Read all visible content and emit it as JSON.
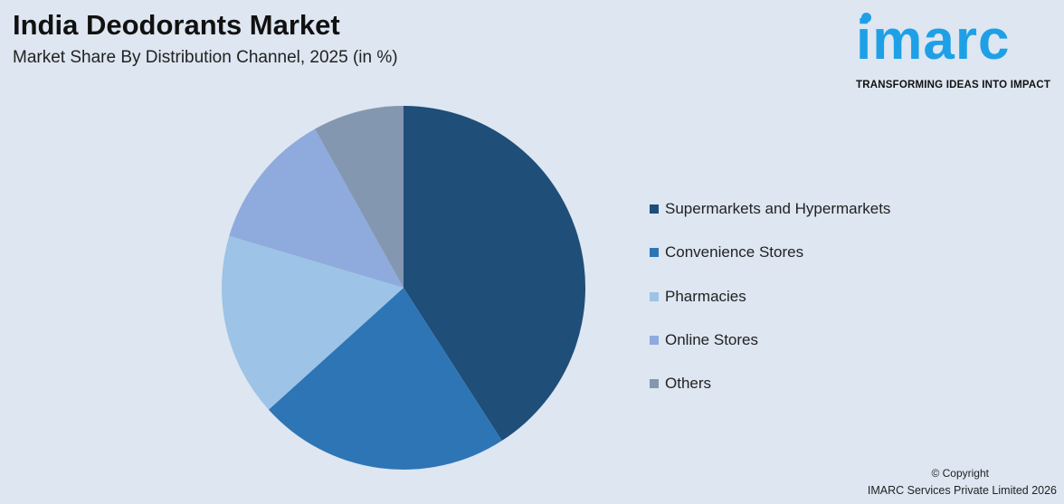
{
  "title": "India Deodorants Market",
  "subtitle": "Market Share By Distribution Channel, 2025 (in %)",
  "logo": {
    "word": "imarc",
    "tagline": "TRANSFORMING IDEAS INTO IMPACT"
  },
  "footer": {
    "copyright": "© Copyright",
    "company": "IMARC Services Private Limited 2026"
  },
  "chart_data": {
    "type": "pie",
    "title": "India Deodorants Market",
    "subtitle": "Market Share By Distribution Channel, 2025 (in %)",
    "legend_position": "right",
    "start_angle": "12 o'clock, clockwise",
    "categories": [
      "Supermarkets and Hypermarkets",
      "Convenience Stores",
      "Pharmacies",
      "Online Stores",
      "Others"
    ],
    "values": [
      40.9,
      22.4,
      16.3,
      12.3,
      8.1
    ],
    "colors": [
      "#1f4e79",
      "#2e75b6",
      "#9dc3e6",
      "#8faadc",
      "#8497b0"
    ]
  }
}
